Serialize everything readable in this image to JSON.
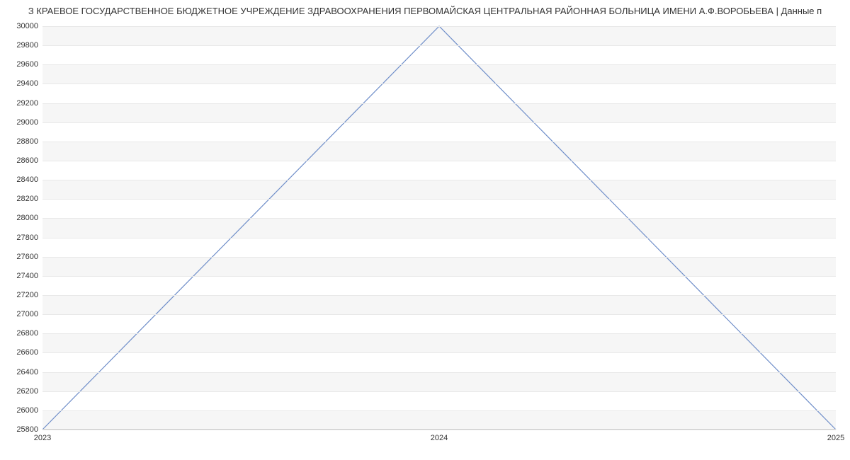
{
  "title": "З КРАЕВОЕ ГОСУДАРСТВЕННОЕ БЮДЖЕТНОЕ УЧРЕЖДЕНИЕ ЗДРАВООХРАНЕНИЯ ПЕРВОМАЙСКАЯ ЦЕНТРАЛЬНАЯ РАЙОННАЯ БОЛЬНИЦА ИМЕНИ А.Ф.ВОРОБЬЕВА | Данные п",
  "chart": {
    "type": "line",
    "background_color": "#ffffff",
    "band_color": "#f6f6f6",
    "grid_color": "#e8e8e8",
    "axis_color": "#cccccc",
    "label_color": "#333333",
    "label_fontsize": 11,
    "title_fontsize": 13,
    "line_color": "#6f8ec9",
    "line_width": 1.2,
    "ylim": [
      25800,
      30000
    ],
    "ytick_step": 200,
    "x_labels": [
      "2023",
      "2024",
      "2025"
    ],
    "x_positions": [
      0,
      0.5,
      1
    ],
    "data": {
      "x": [
        0,
        0.5,
        1
      ],
      "y": [
        25800,
        30000,
        25800
      ]
    }
  }
}
